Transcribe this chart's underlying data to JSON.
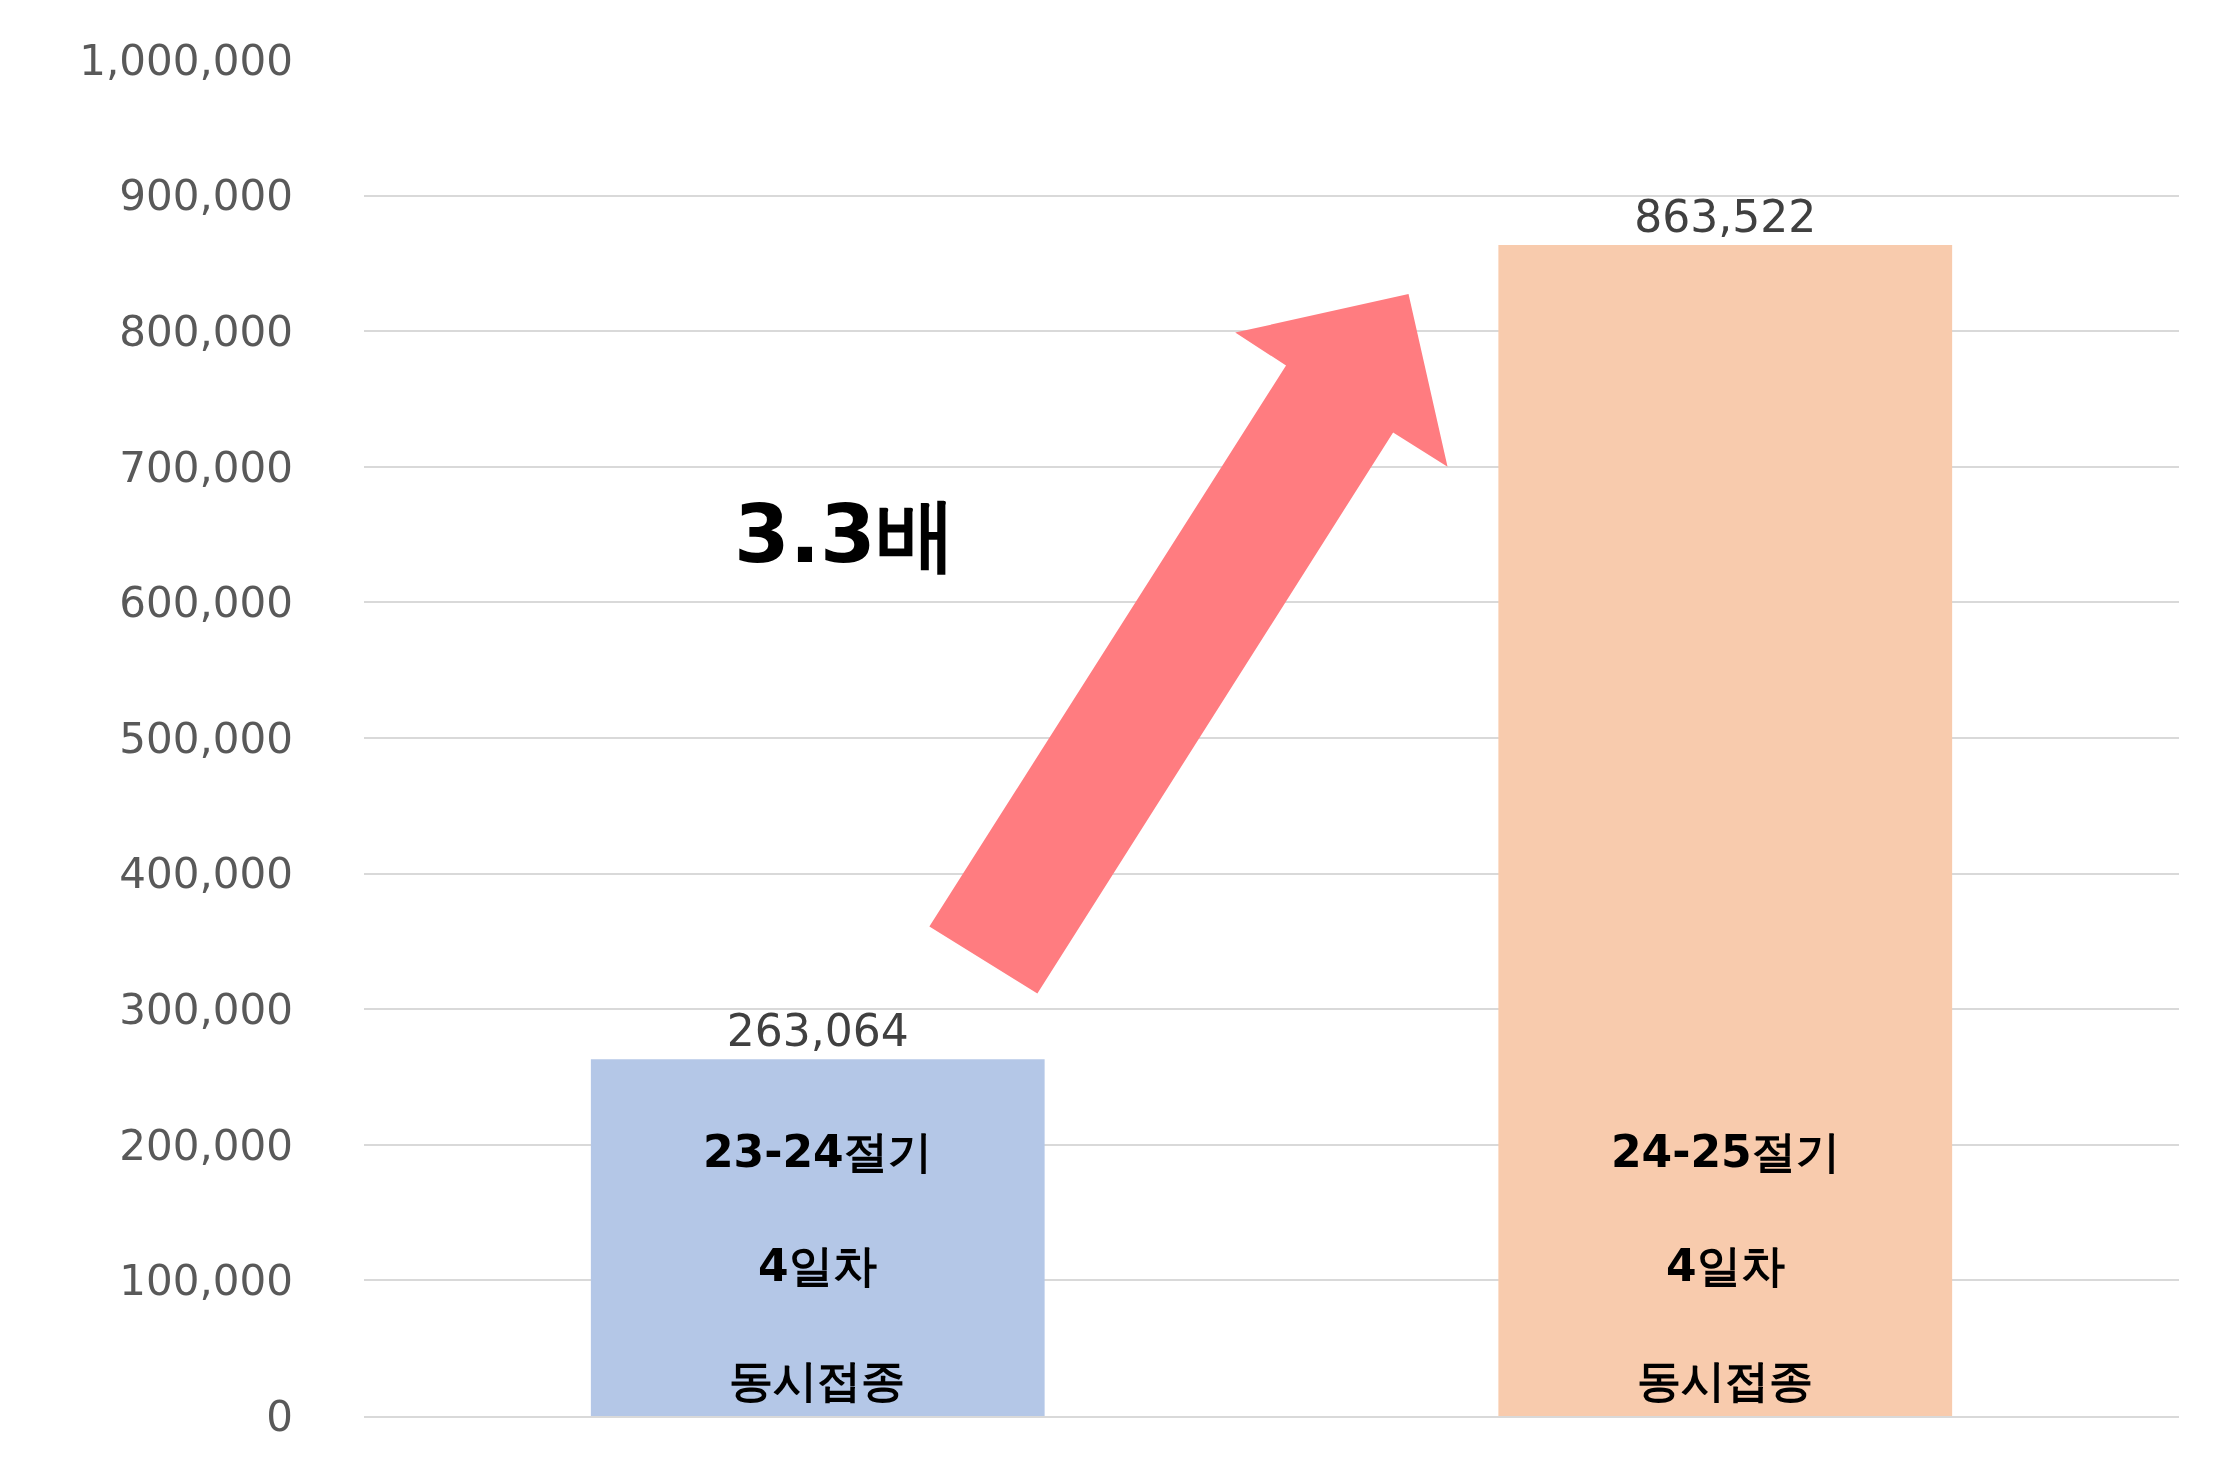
{
  "chart_data": {
    "type": "bar",
    "categories": [
      "23-24절기\n4일차\n동시접종",
      "24-25절기\n4일차\n동시접종"
    ],
    "values": [
      263064,
      863522
    ],
    "colors": [
      "#b4c7e7",
      "#f8cbad"
    ],
    "value_labels": [
      "263,064",
      "863,522"
    ],
    "ylim": [
      0,
      1000000
    ],
    "yticks": [
      0,
      {
        "value": 100000,
        "label": "100,000"
      },
      {
        "value": 200000,
        "label": "200,000"
      },
      {
        "value": 300000,
        "label": "300,000"
      },
      {
        "value": 400000,
        "label": "400,000"
      },
      {
        "value": 500000,
        "label": "500,000"
      },
      {
        "value": 600000,
        "label": "600,000"
      },
      {
        "value": 700000,
        "label": "700,000"
      },
      {
        "value": 800000,
        "label": "800,000"
      },
      {
        "value": 900000,
        "label": "900,000"
      },
      {
        "value": 1000000,
        "label": "1,000,000"
      }
    ],
    "grid": "y",
    "tick_labels": "y",
    "annotations": [
      "3.3배"
    ]
  }
}
